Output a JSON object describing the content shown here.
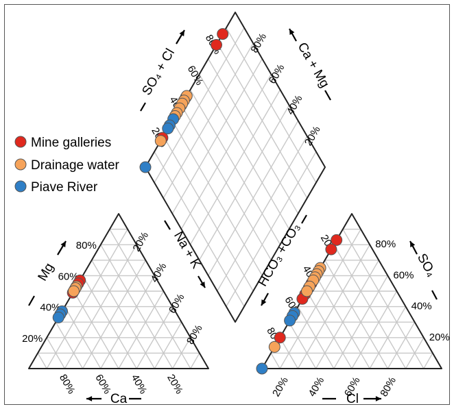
{
  "chart_data": {
    "type": "scatter",
    "diagram": "piper",
    "legend": {
      "placement": "left",
      "entries": [
        {
          "name": "Mine galleries",
          "color": "#e0291e"
        },
        {
          "name": "Drainage water",
          "color": "#f6a35a"
        },
        {
          "name": "Piave River",
          "color": "#2f7fc6"
        }
      ]
    },
    "axis_labels": {
      "cation_bottom": "Ca",
      "cation_left": "Mg",
      "anion_bottom": "Cl",
      "anion_right": "SO₄",
      "diamond_upper_left": "SO₄ + Cl",
      "diamond_upper_right": "Ca + Mg",
      "diamond_lower_left": "Na + K",
      "diamond_lower_right": "HCO₃ +CO₃"
    },
    "ticks": {
      "cation_bottom": [
        "80%",
        "60%",
        "40%",
        "20%"
      ],
      "cation_left": [
        "20%",
        "40%",
        "60%",
        "80%"
      ],
      "cation_right": [
        "20%",
        "40%",
        "60%",
        "80%"
      ],
      "anion_bottom": [
        "20%",
        "40%",
        "60%",
        "80%"
      ],
      "anion_left": [
        "20%",
        "40%",
        "60%",
        "80%"
      ],
      "anion_right": [
        "80%",
        "60%",
        "40%",
        "20%"
      ],
      "diamond_upper_left": [
        "20%",
        "40%",
        "60%",
        "80%"
      ],
      "diamond_upper_right": [
        "80%",
        "60%",
        "40%",
        "20%"
      ]
    },
    "cation_points": [
      {
        "series": "Mine galleries",
        "mg": 57
      },
      {
        "series": "Mine galleries",
        "mg": 55
      },
      {
        "series": "Mine galleries",
        "mg": 51
      },
      {
        "series": "Mine galleries",
        "mg": 49
      },
      {
        "series": "Drainage water",
        "mg": 53
      },
      {
        "series": "Drainage water",
        "mg": 52
      },
      {
        "series": "Drainage water",
        "mg": 50
      },
      {
        "series": "Piave River",
        "mg": 37
      },
      {
        "series": "Piave River",
        "mg": 35
      },
      {
        "series": "Piave River",
        "mg": 33
      }
    ],
    "anion_points": [
      {
        "series": "Mine galleries",
        "so4": 83
      },
      {
        "series": "Mine galleries",
        "so4": 77
      },
      {
        "series": "Mine galleries",
        "so4": 55
      },
      {
        "series": "Mine galleries",
        "so4": 52
      },
      {
        "series": "Mine galleries",
        "so4": 48
      },
      {
        "series": "Mine galleries",
        "so4": 45
      },
      {
        "series": "Mine galleries",
        "so4": 20
      },
      {
        "series": "Drainage water",
        "so4": 65
      },
      {
        "series": "Drainage water",
        "so4": 63
      },
      {
        "series": "Drainage water",
        "so4": 61
      },
      {
        "series": "Drainage water",
        "so4": 59
      },
      {
        "series": "Drainage water",
        "so4": 57
      },
      {
        "series": "Drainage water",
        "so4": 53
      },
      {
        "series": "Drainage water",
        "so4": 50
      },
      {
        "series": "Drainage water",
        "so4": 14
      },
      {
        "series": "Piave River",
        "so4": 36
      },
      {
        "series": "Piave River",
        "so4": 34
      },
      {
        "series": "Piave River",
        "so4": 31
      },
      {
        "series": "Piave River",
        "so4": 0
      }
    ],
    "diamond_points": [
      {
        "series": "Mine galleries",
        "so4_cl": 86
      },
      {
        "series": "Mine galleries",
        "so4_cl": 79
      },
      {
        "series": "Mine galleries",
        "so4_cl": 45
      },
      {
        "series": "Mine galleries",
        "so4_cl": 40
      },
      {
        "series": "Mine galleries",
        "so4_cl": 19
      },
      {
        "series": "Drainage water",
        "so4_cl": 46
      },
      {
        "series": "Drainage water",
        "so4_cl": 43
      },
      {
        "series": "Drainage water",
        "so4_cl": 41
      },
      {
        "series": "Drainage water",
        "so4_cl": 38
      },
      {
        "series": "Drainage water",
        "so4_cl": 35
      },
      {
        "series": "Drainage water",
        "so4_cl": 33
      },
      {
        "series": "Drainage water",
        "so4_cl": 17
      },
      {
        "series": "Piave River",
        "so4_cl": 31
      },
      {
        "series": "Piave River",
        "so4_cl": 27
      },
      {
        "series": "Piave River",
        "so4_cl": 25
      },
      {
        "series": "Piave River",
        "so4_cl": 0
      }
    ]
  }
}
